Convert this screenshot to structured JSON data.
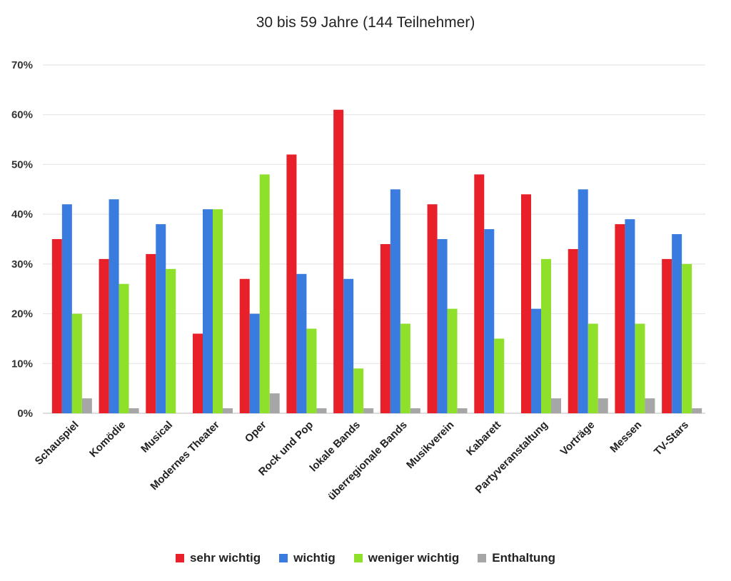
{
  "chart_data": {
    "type": "bar",
    "title": "30 bis 59 Jahre (144 Teilnehmer)",
    "xlabel": "",
    "ylabel": "",
    "ylim": [
      0,
      70
    ],
    "yticks": [
      "0%",
      "10%",
      "20%",
      "30%",
      "40%",
      "50%",
      "60%",
      "70%"
    ],
    "grid": true,
    "legend_position": "bottom",
    "categories": [
      "Schauspiel",
      "Komödie",
      "Musical",
      "Modernes Theater",
      "Oper",
      "Rock und Pop",
      "lokale Bands",
      "überregionale Bands",
      "Musikverein",
      "Kabarett",
      "Partyveranstaltung",
      "Vorträge",
      "Messen",
      "TV-Stars"
    ],
    "series": [
      {
        "name": "sehr wichtig",
        "color": "#e8202a",
        "values": [
          35,
          31,
          32,
          16,
          27,
          52,
          61,
          34,
          42,
          48,
          44,
          33,
          38,
          31
        ]
      },
      {
        "name": "wichtig",
        "color": "#3a7be0",
        "values": [
          42,
          43,
          38,
          41,
          20,
          28,
          27,
          45,
          35,
          37,
          21,
          45,
          39,
          36
        ]
      },
      {
        "name": "weniger wichtig",
        "color": "#8fe02a",
        "values": [
          20,
          26,
          29,
          41,
          48,
          17,
          9,
          18,
          21,
          15,
          31,
          18,
          18,
          30
        ]
      },
      {
        "name": "Enthaltung",
        "color": "#a6a6a6",
        "values": [
          3,
          1,
          0,
          1,
          4,
          1,
          1,
          1,
          1,
          0,
          3,
          3,
          3,
          1
        ]
      }
    ]
  }
}
